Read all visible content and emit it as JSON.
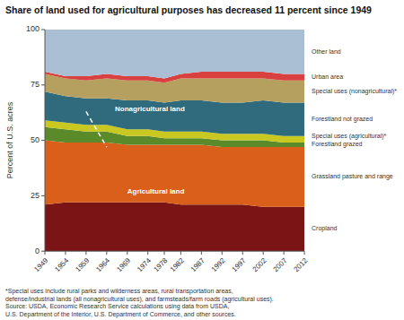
{
  "chart_data": {
    "type": "area",
    "stacked": true,
    "title": "Share of land used for agricultural purposes has decreased 11 percent since 1949",
    "ylabel": "Percent of U.S. acres",
    "footnote": "*Special uses include rural parks and wilderness areas, rural transportation areas,\ndefense/industrial lands (all nonagricultural uses), and farmsteads/farm roads (agricultural uses).\nSource: USDA, Economic Research Service calculations using data from USDA,\nU.S. Department of the Interior, U.S. Department of Commerce, and other sources.",
    "x": [
      1949,
      1954,
      1959,
      1964,
      1969,
      1974,
      1978,
      1982,
      1987,
      1992,
      1997,
      2002,
      2007,
      2012
    ],
    "series": [
      {
        "name": "Cropland",
        "color": "#7B1414",
        "values": [
          21,
          22,
          22,
          22,
          22,
          22,
          22,
          21,
          21,
          21,
          21,
          20,
          20,
          20
        ]
      },
      {
        "name": "Grassland pasture and range",
        "color": "#D95F1A",
        "values": [
          29,
          27,
          27,
          27,
          26,
          26,
          26,
          27,
          27,
          26,
          26,
          27,
          27,
          27
        ]
      },
      {
        "name": "Forestland grazed",
        "color": "#5B8A2A",
        "values": [
          6,
          6,
          5,
          5,
          4,
          4,
          3,
          3,
          3,
          3,
          3,
          3,
          2,
          2
        ]
      },
      {
        "name": "Special uses (agricultural)*",
        "color": "#C8C820",
        "values": [
          3,
          3,
          3,
          3,
          3,
          3,
          3,
          3,
          3,
          3,
          3,
          3,
          3,
          3
        ]
      },
      {
        "name": "Forestland not grazed",
        "color": "#2F6B7C",
        "values": [
          13,
          12,
          12,
          12,
          13,
          13,
          13,
          14,
          14,
          14,
          14,
          15,
          15,
          15
        ]
      },
      {
        "name": "Special uses (nonagricultural)*",
        "color": "#B5A060",
        "values": [
          8,
          8,
          8,
          9,
          9,
          9,
          9,
          10,
          10,
          11,
          11,
          10,
          10,
          10
        ]
      },
      {
        "name": "Urban area",
        "color": "#D94040",
        "values": [
          1,
          1,
          2,
          2,
          2,
          2,
          2,
          2,
          3,
          3,
          3,
          3,
          3,
          3
        ]
      },
      {
        "name": "Other land",
        "color": "#AABFD4",
        "values": [
          19,
          21,
          21,
          20,
          21,
          21,
          22,
          20,
          19,
          19,
          19,
          19,
          20,
          20
        ]
      }
    ],
    "reference_lines": [
      {
        "x": [
          1959,
          1964
        ],
        "y": [
          63,
          47
        ],
        "color": "#FFFFFF",
        "line_style": "dashed"
      }
    ],
    "annotations": [
      {
        "text": "Agricultural land",
        "x": 1969,
        "y": 27,
        "color": "#FFFFFF"
      },
      {
        "text": "Nonagricultural land",
        "x": 1966,
        "y": 64,
        "color": "#FFFFFF"
      }
    ],
    "xlim": [
      1949,
      2012
    ],
    "xticks": [
      1949,
      1954,
      1959,
      1964,
      1969,
      1974,
      1978,
      1982,
      1987,
      1992,
      1997,
      2002,
      2007,
      2012
    ],
    "ylim": [
      0,
      100
    ],
    "yticks": [
      0,
      25,
      50,
      75,
      100
    ],
    "grid": false
  }
}
